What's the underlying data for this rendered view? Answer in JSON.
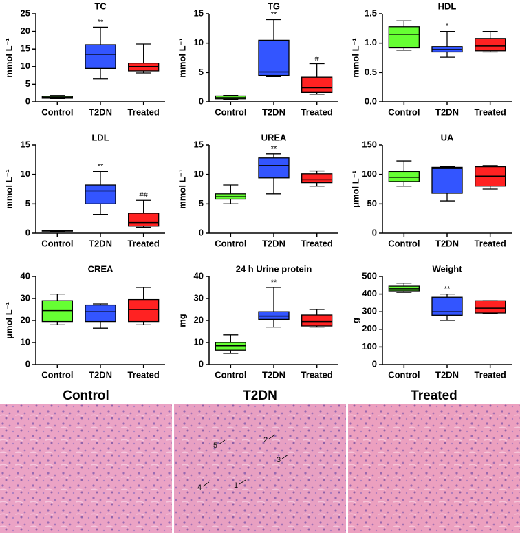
{
  "chart_data": [
    {
      "type": "box",
      "title": "TC",
      "ylabel": "mmol L⁻¹",
      "categories": [
        "Control",
        "T2DN",
        "Treated"
      ],
      "colors": [
        "#66ff33",
        "#3355ff",
        "#ff2222"
      ],
      "boxes": [
        {
          "min": 0.9,
          "q1": 1.0,
          "median": 1.3,
          "q3": 1.6,
          "max": 1.8
        },
        {
          "min": 6.5,
          "q1": 9.5,
          "median": 13.5,
          "q3": 16.2,
          "max": 21.2
        },
        {
          "min": 8.2,
          "q1": 8.8,
          "median": 10.0,
          "q3": 11.0,
          "max": 16.4
        }
      ],
      "annotations": [
        null,
        "**",
        null
      ],
      "ylim": [
        0,
        25
      ],
      "yticks": [
        0,
        5,
        10,
        15,
        20,
        25
      ]
    },
    {
      "type": "box",
      "title": "TG",
      "ylabel": "mmol L⁻¹",
      "categories": [
        "Control",
        "T2DN",
        "Treated"
      ],
      "colors": [
        "#66ff33",
        "#3355ff",
        "#ff2222"
      ],
      "boxes": [
        {
          "min": 0.4,
          "q1": 0.5,
          "median": 0.7,
          "q3": 1.0,
          "max": 1.1
        },
        {
          "min": 4.3,
          "q1": 4.5,
          "median": 5.1,
          "q3": 10.5,
          "max": 14.0
        },
        {
          "min": 1.3,
          "q1": 1.6,
          "median": 2.4,
          "q3": 4.2,
          "max": 6.5
        }
      ],
      "annotations": [
        null,
        "**",
        "#"
      ],
      "ylim": [
        0,
        15
      ],
      "yticks": [
        0,
        5,
        10,
        15
      ]
    },
    {
      "type": "box",
      "title": "HDL",
      "ylabel": "mmol L⁻¹",
      "categories": [
        "Control",
        "T2DN",
        "Treated"
      ],
      "colors": [
        "#66ff33",
        "#3355ff",
        "#ff2222"
      ],
      "boxes": [
        {
          "min": 0.88,
          "q1": 0.92,
          "median": 1.15,
          "q3": 1.28,
          "max": 1.38
        },
        {
          "min": 0.76,
          "q1": 0.85,
          "median": 0.89,
          "q3": 0.94,
          "max": 1.2
        },
        {
          "min": 0.85,
          "q1": 0.87,
          "median": 0.95,
          "q3": 1.08,
          "max": 1.2
        }
      ],
      "annotations": [
        null,
        "*",
        null
      ],
      "ylim": [
        0,
        1.5
      ],
      "yticks": [
        {
          "value": 0,
          "label": "0.0"
        },
        0.5,
        {
          "value": 1,
          "label": "1.0"
        },
        1.5
      ]
    },
    {
      "type": "box",
      "title": "LDL",
      "ylabel": "mmol L⁻¹",
      "categories": [
        "Control",
        "T2DN",
        "Treated"
      ],
      "colors": [
        "#66ff33",
        "#3355ff",
        "#ff2222"
      ],
      "boxes": [
        {
          "min": 0.3,
          "q1": 0.35,
          "median": 0.4,
          "q3": 0.45,
          "max": 0.5
        },
        {
          "min": 3.2,
          "q1": 5.0,
          "median": 7.2,
          "q3": 8.2,
          "max": 10.5
        },
        {
          "min": 1.0,
          "q1": 1.2,
          "median": 1.8,
          "q3": 3.4,
          "max": 5.6
        }
      ],
      "annotations": [
        null,
        "**",
        "##"
      ],
      "ylim": [
        0,
        15
      ],
      "yticks": [
        0,
        5,
        10,
        15
      ]
    },
    {
      "type": "box",
      "title": "UREA",
      "ylabel": "mmol L⁻¹",
      "categories": [
        "Control",
        "T2DN",
        "Treated"
      ],
      "colors": [
        "#66ff33",
        "#3355ff",
        "#ff2222"
      ],
      "boxes": [
        {
          "min": 5.0,
          "q1": 5.8,
          "median": 6.2,
          "q3": 6.7,
          "max": 8.2
        },
        {
          "min": 6.7,
          "q1": 9.4,
          "median": 11.5,
          "q3": 12.8,
          "max": 13.5
        },
        {
          "min": 8.0,
          "q1": 8.6,
          "median": 9.1,
          "q3": 10.1,
          "max": 10.6
        }
      ],
      "annotations": [
        null,
        "**",
        null
      ],
      "ylim": [
        0,
        15
      ],
      "yticks": [
        0,
        5,
        10,
        15
      ]
    },
    {
      "type": "box",
      "title": "UA",
      "ylabel": "μmol L⁻¹",
      "categories": [
        "Control",
        "T2DN",
        "Treated"
      ],
      "colors": [
        "#66ff33",
        "#3355ff",
        "#ff2222"
      ],
      "boxes": [
        {
          "min": 80,
          "q1": 88,
          "median": 95,
          "q3": 105,
          "max": 123
        },
        {
          "min": 55,
          "q1": 68,
          "median": 110,
          "q3": 112,
          "max": 113
        },
        {
          "min": 75,
          "q1": 80,
          "median": 97,
          "q3": 113,
          "max": 115
        }
      ],
      "annotations": [
        null,
        null,
        null
      ],
      "ylim": [
        0,
        150
      ],
      "yticks": [
        0,
        50,
        100,
        150
      ]
    },
    {
      "type": "box",
      "title": "CREA",
      "ylabel": "μmol L⁻¹",
      "categories": [
        "Control",
        "T2DN",
        "Treated"
      ],
      "colors": [
        "#66ff33",
        "#3355ff",
        "#ff2222"
      ],
      "boxes": [
        {
          "min": 18,
          "q1": 19.5,
          "median": 24.5,
          "q3": 29,
          "max": 32
        },
        {
          "min": 16.5,
          "q1": 19.5,
          "median": 24,
          "q3": 27,
          "max": 27.5
        },
        {
          "min": 18,
          "q1": 19.5,
          "median": 25,
          "q3": 29.5,
          "max": 35
        }
      ],
      "annotations": [
        null,
        null,
        null
      ],
      "ylim": [
        0,
        40
      ],
      "yticks": [
        0,
        10,
        20,
        30,
        40
      ]
    },
    {
      "type": "box",
      "title": "24 h Urine protein",
      "ylabel": "mg",
      "categories": [
        "Control",
        "T2DN",
        "Treated"
      ],
      "colors": [
        "#66ff33",
        "#3355ff",
        "#ff2222"
      ],
      "boxes": [
        {
          "min": 5,
          "q1": 6.5,
          "median": 8.5,
          "q3": 10,
          "max": 13.5
        },
        {
          "min": 17,
          "q1": 20.5,
          "median": 22,
          "q3": 24,
          "max": 35
        },
        {
          "min": 17,
          "q1": 17.5,
          "median": 19.5,
          "q3": 22.5,
          "max": 25
        }
      ],
      "annotations": [
        null,
        "**",
        null
      ],
      "ylim": [
        0,
        40
      ],
      "yticks": [
        0,
        10,
        20,
        30,
        40
      ]
    },
    {
      "type": "box",
      "title": "Weight",
      "ylabel": "g",
      "categories": [
        "Control",
        "T2DN",
        "Treated"
      ],
      "colors": [
        "#66ff33",
        "#3355ff",
        "#ff2222"
      ],
      "boxes": [
        {
          "min": 410,
          "q1": 418,
          "median": 430,
          "q3": 445,
          "max": 462
        },
        {
          "min": 250,
          "q1": 280,
          "median": 300,
          "q3": 382,
          "max": 400
        },
        {
          "min": 290,
          "q1": 293,
          "median": 320,
          "q3": 362,
          "max": 362
        }
      ],
      "annotations": [
        null,
        "**",
        null
      ],
      "ylim": [
        0,
        500
      ],
      "yticks": [
        0,
        100,
        200,
        300,
        400,
        500
      ]
    }
  ],
  "histology": {
    "panels": [
      "Control",
      "T2DN",
      "Treated"
    ],
    "markers": [
      "1",
      "2",
      "3",
      "4",
      "5"
    ]
  }
}
